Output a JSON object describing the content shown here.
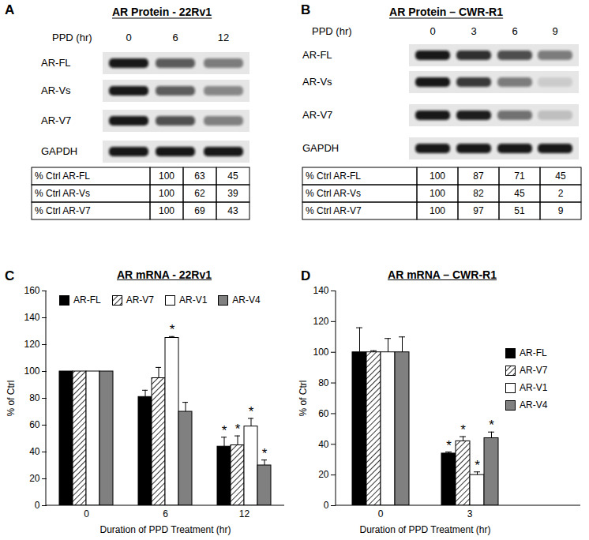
{
  "blots": [
    {
      "panel": "A",
      "title": "AR Protein - 22Rv1",
      "treatment": "PPD (hr)",
      "lanes": [
        0,
        6,
        12
      ],
      "bands": [
        "AR-FL",
        "AR-Vs",
        "AR-V7",
        "GAPDH"
      ],
      "table": {
        "rows": [
          {
            "label": "% Ctrl AR-FL",
            "values": [
              100,
              63,
              45
            ]
          },
          {
            "label": "% Ctrl AR-Vs",
            "values": [
              100,
              62,
              39
            ]
          },
          {
            "label": "% Ctrl AR-V7",
            "values": [
              100,
              69,
              43
            ]
          }
        ]
      }
    },
    {
      "panel": "B",
      "title": "AR Protein – CWR-R1",
      "treatment": "PPD (hr)",
      "lanes": [
        0,
        3,
        6,
        9
      ],
      "bands": [
        "AR-FL",
        "AR-Vs",
        "AR-V7",
        "GAPDH"
      ],
      "table": {
        "rows": [
          {
            "label": "% Ctrl AR-FL",
            "values": [
              100,
              87,
              71,
              45
            ]
          },
          {
            "label": "% Ctrl AR-Vs",
            "values": [
              100,
              82,
              45,
              2
            ]
          },
          {
            "label": "% Ctrl AR-V7",
            "values": [
              100,
              97,
              51,
              9
            ]
          }
        ]
      }
    }
  ],
  "chart_data": [
    {
      "panel": "C",
      "type": "bar",
      "title": "AR mRNA - 22Rv1",
      "x_label": "Duration of PPD Treatment (hr)",
      "y_label": "% of Ctrl",
      "categories": [
        "0",
        "6",
        "12"
      ],
      "ylim": [
        0,
        160
      ],
      "yticks": [
        0,
        20,
        40,
        60,
        80,
        100,
        120,
        140,
        160
      ],
      "grid": false,
      "legend": "top",
      "series": [
        {
          "name": "AR-FL",
          "color": "#000000",
          "values": [
            100,
            81,
            44
          ],
          "errors": [
            null,
            5,
            7
          ],
          "annotations": [
            null,
            null,
            "*"
          ]
        },
        {
          "name": "AR-V7",
          "color": "#ffffff",
          "line_style": "hatched",
          "values": [
            100,
            95,
            45
          ],
          "errors": [
            null,
            8,
            7
          ],
          "annotations": [
            null,
            null,
            "*"
          ]
        },
        {
          "name": "AR-V1",
          "color": "#ffffff",
          "values": [
            100,
            125,
            59
          ],
          "errors": [
            null,
            1,
            6
          ],
          "annotations": [
            null,
            "*",
            "*"
          ]
        },
        {
          "name": "AR-V4",
          "color": "#808080",
          "values": [
            100,
            70,
            30
          ],
          "errors": [
            null,
            7,
            4
          ],
          "annotations": [
            null,
            null,
            "*"
          ]
        }
      ]
    },
    {
      "panel": "D",
      "type": "bar",
      "title": "AR mRNA – CWR-R1",
      "x_label": "Duration of PPD Treatment (hr)",
      "y_label": "% of Ctrl",
      "categories": [
        "0",
        "3"
      ],
      "ylim": [
        0,
        140
      ],
      "yticks": [
        0,
        20,
        40,
        60,
        80,
        100,
        120,
        140
      ],
      "grid": false,
      "legend": "right",
      "series": [
        {
          "name": "AR-FL",
          "color": "#000000",
          "values": [
            100,
            34
          ],
          "errors": [
            16,
            1
          ],
          "annotations": [
            null,
            "*"
          ]
        },
        {
          "name": "AR-V7",
          "color": "#ffffff",
          "line_style": "hatched",
          "values": [
            100,
            42
          ],
          "errors": [
            1,
            3
          ],
          "annotations": [
            null,
            "*"
          ]
        },
        {
          "name": "AR-V1",
          "color": "#ffffff",
          "values": [
            100,
            20
          ],
          "errors": [
            9,
            2
          ],
          "annotations": [
            null,
            "*"
          ]
        },
        {
          "name": "AR-V4",
          "color": "#808080",
          "values": [
            100,
            44
          ],
          "errors": [
            10,
            4
          ],
          "annotations": [
            null,
            "*"
          ]
        }
      ]
    }
  ]
}
